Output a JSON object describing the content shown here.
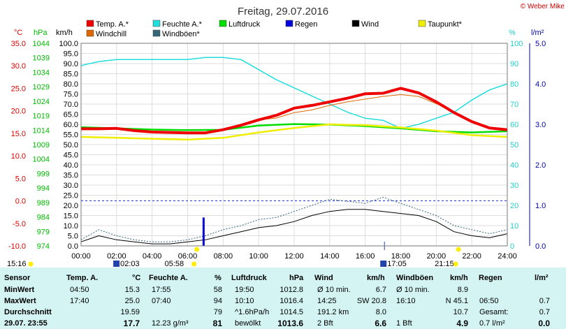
{
  "title": "Freitag, 29.07.2016",
  "copyright": "© Weber Mike",
  "colors": {
    "temp": "#ee0000",
    "humidity": "#22dddd",
    "pressure": "#00dd00",
    "rain": "#0000dd",
    "wind": "#000000",
    "dewpoint": "#eeee00",
    "windchill": "#dd6600",
    "gusts": "#336677",
    "pressure_axis": "#00bb00",
    "temp_axis": "#dd0000",
    "humidity_axis": "#22cccc",
    "rain_axis": "#0000aa",
    "table_bg": "#d4f4f4"
  },
  "legend": [
    {
      "label": "Temp. A.*",
      "color": "#ee0000"
    },
    {
      "label": "Feuchte A.*",
      "color": "#22dddd"
    },
    {
      "label": "Luftdruck",
      "color": "#00dd00"
    },
    {
      "label": "Regen",
      "color": "#0000dd"
    },
    {
      "label": "Wind",
      "color": "#000000"
    },
    {
      "label": "Taupunkt*",
      "color": "#eeee00"
    },
    {
      "label": "Windchill",
      "color": "#dd6600"
    },
    {
      "label": "Windböen*",
      "color": "#336677"
    }
  ],
  "axes": {
    "temp_unit": "°C",
    "pressure_unit": "hPa",
    "wind_unit": "km/h",
    "humidity_unit": "%",
    "rain_unit": "l/m²",
    "temp_ticks": [
      "35.0",
      "30.0",
      "25.0",
      "20.0",
      "15.0",
      "10.0",
      "5.0",
      "0.0",
      "-5.0",
      "-10.0"
    ],
    "pressure_ticks": [
      "1044",
      "1039",
      "1034",
      "1029",
      "1024",
      "1019",
      "1014",
      "1009",
      "1004",
      "999",
      "994",
      "989",
      "984",
      "979",
      "974"
    ],
    "wind_ticks": [
      "100.0",
      "95.0",
      "90.0",
      "85.0",
      "80.0",
      "75.0",
      "70.0",
      "65.0",
      "60.0",
      "55.0",
      "50.0",
      "45.0",
      "40.0",
      "35.0",
      "30.0",
      "25.0",
      "20.0",
      "15.0",
      "10.0",
      "5.0",
      "0.0"
    ],
    "humidity_ticks": [
      "100",
      "90",
      "80",
      "70",
      "60",
      "50",
      "40",
      "30",
      "20",
      "10",
      "0"
    ],
    "rain_ticks": [
      "5.0",
      "4.0",
      "3.0",
      "2.0",
      "1.0",
      "0.0"
    ],
    "time_ticks": [
      "00:00",
      "02:00",
      "04:00",
      "06:00",
      "08:00",
      "10:00",
      "12:00",
      "14:00",
      "16:00",
      "18:00",
      "20:00",
      "22:00",
      "24:00"
    ]
  },
  "events": {
    "sunrise": "05:58",
    "sunset": "21:15",
    "moonrise": "02:03",
    "moonset": "17:05",
    "day_length": "15:16"
  },
  "chart_data": {
    "type": "line",
    "title": "Freitag, 29.07.2016",
    "x_unit": "hours",
    "xlim": [
      0,
      24
    ],
    "ylim_temp": [
      -10,
      35
    ],
    "ylim_wind": [
      0,
      100
    ],
    "ylim_humidity": [
      0,
      100
    ],
    "ylim_rain": [
      0,
      5
    ],
    "series": [
      {
        "name": "Temp. A.*",
        "axis": "°C",
        "x": [
          0,
          1,
          2,
          3,
          4,
          5,
          6,
          7,
          8,
          9,
          10,
          11,
          12,
          13,
          14,
          15,
          16,
          17,
          18,
          19,
          20,
          21,
          22,
          23,
          24
        ],
        "y": [
          16.0,
          16.0,
          16.1,
          15.6,
          15.3,
          15.2,
          15.1,
          15.1,
          15.8,
          16.8,
          18.0,
          19.0,
          20.6,
          21.2,
          22.0,
          22.8,
          23.8,
          23.9,
          25.0,
          24.0,
          22.0,
          19.6,
          17.6,
          16.2,
          15.8
        ]
      },
      {
        "name": "Feuchte A.*",
        "axis": "%",
        "x": [
          0,
          1,
          2,
          3,
          4,
          5,
          6,
          7,
          8,
          9,
          10,
          11,
          12,
          13,
          14,
          15,
          16,
          17,
          18,
          19,
          20,
          21,
          22,
          23,
          24
        ],
        "y": [
          89,
          91,
          92,
          92,
          92,
          92,
          92,
          93,
          93,
          92,
          87,
          82,
          78,
          74,
          70,
          66,
          63,
          62,
          58,
          60,
          63,
          66,
          72,
          77,
          80
        ]
      },
      {
        "name": "Luftdruck",
        "axis": "hPa",
        "x": [
          0,
          2,
          4,
          6,
          8,
          10,
          12,
          14,
          16,
          18,
          20,
          22,
          24
        ],
        "y": [
          1015.0,
          1014.6,
          1014.2,
          1014.0,
          1014.1,
          1015.6,
          1016.1,
          1015.9,
          1015.4,
          1014.6,
          1013.6,
          1013.2,
          1013.6
        ]
      },
      {
        "name": "Taupunkt*",
        "axis": "°C",
        "x": [
          0,
          2,
          4,
          6,
          8,
          10,
          12,
          14,
          16,
          18,
          20,
          22,
          24
        ],
        "y": [
          14.2,
          14.0,
          13.8,
          13.6,
          14.0,
          15.2,
          16.2,
          17.0,
          16.8,
          16.3,
          15.6,
          14.6,
          14.2
        ]
      },
      {
        "name": "Windchill",
        "axis": "°C",
        "x": [
          10,
          11,
          12,
          13,
          14,
          15,
          16,
          17,
          18,
          19,
          20,
          21,
          22
        ],
        "y": [
          18.0,
          18.4,
          19.6,
          20.2,
          21.2,
          22.0,
          22.6,
          23.2,
          23.6,
          23.2,
          21.6,
          19.8,
          17.8
        ]
      },
      {
        "name": "Wind",
        "axis": "km/h",
        "x": [
          0,
          1,
          2,
          3,
          4,
          5,
          6,
          7,
          8,
          9,
          10,
          11,
          12,
          13,
          14,
          15,
          16,
          17,
          18,
          19,
          20,
          21,
          22,
          23,
          24
        ],
        "y": [
          2,
          5,
          3,
          2,
          1,
          1,
          2,
          3,
          5,
          7,
          9,
          10,
          12,
          15,
          17,
          18,
          18,
          17,
          16,
          15,
          12,
          7,
          5,
          4,
          6
        ]
      },
      {
        "name": "Windböen*",
        "axis": "km/h",
        "x": [
          0,
          1,
          2,
          3,
          4,
          5,
          6,
          7,
          8,
          9,
          10,
          11,
          12,
          13,
          14,
          15,
          16,
          17,
          18,
          19,
          20,
          21,
          22,
          23,
          24
        ],
        "y": [
          3,
          8,
          5,
          3,
          2,
          2,
          3,
          5,
          8,
          10,
          13,
          14,
          17,
          20,
          23,
          22,
          21,
          24,
          21,
          18,
          15,
          10,
          8,
          6,
          8
        ]
      },
      {
        "name": "Regen",
        "axis": "l/m²",
        "x": [
          6.9
        ],
        "y": [
          0.7
        ]
      }
    ]
  },
  "table": {
    "headers": [
      "Sensor",
      "Temp. A.",
      "°C",
      "Feuchte A.",
      "%",
      "Luftdruck",
      "hPa",
      "Wind",
      "km/h",
      "Windböen",
      "km/h",
      "Regen",
      "l/m²"
    ],
    "rows": [
      {
        "label": "MinWert",
        "cells": [
          "04:50",
          "15.3",
          "17:55",
          "58",
          "19:50",
          "1012.8",
          "Ø 10 min.",
          "6.7",
          "Ø 10 min.",
          "8.9",
          "",
          ""
        ]
      },
      {
        "label": "MaxWert",
        "cells": [
          "17:40",
          "25.0",
          "07:40",
          "94",
          "10:10",
          "1016.4",
          "14:25",
          "SW 20.8",
          "16:10",
          "N 45.1",
          "06:50",
          "0.7"
        ]
      },
      {
        "label": "Durchschnitt",
        "cells": [
          "",
          "19.59",
          "",
          "79",
          "^1.6hPa/h",
          "1014.5",
          "191.2 km",
          "8.0",
          "",
          "10.7",
          "Gesamt:",
          "0.7"
        ]
      },
      {
        "label": "29.07.  23:55",
        "cells": [
          "",
          "17.7",
          "12.23 g/m³",
          "81",
          "bewölkt",
          "1013.6",
          "2 Bft",
          "6.6",
          "1 Bft",
          "4.9",
          "0.7 l/m²",
          "0.0"
        ]
      }
    ]
  }
}
